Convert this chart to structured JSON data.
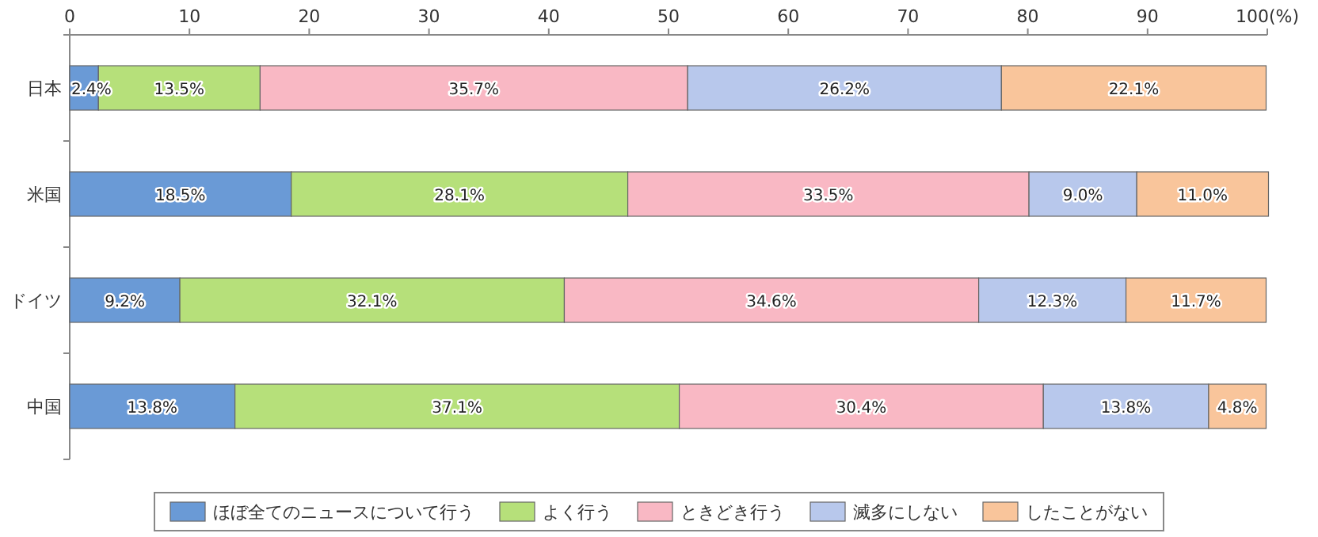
{
  "chart_data": {
    "type": "bar",
    "orientation": "horizontal",
    "stacked": true,
    "categories": [
      "日本",
      "米国",
      "ドイツ",
      "中国"
    ],
    "xlim": [
      0,
      100
    ],
    "xticks": [
      0,
      10,
      20,
      30,
      40,
      50,
      60,
      70,
      80,
      90,
      {
        "value": 100,
        "label": "100(%)"
      }
    ],
    "legend": "bottom",
    "series": [
      {
        "name": "ほぼ全てのニュースについて行う",
        "color": "#6a9ad6",
        "values": [
          2.4,
          18.5,
          9.2,
          13.8
        ],
        "value_labels": [
          "2.4%",
          "18.5%",
          "9.2%",
          "13.8%"
        ]
      },
      {
        "name": "よく行う",
        "color": "#b6e07a",
        "values": [
          13.5,
          28.1,
          32.1,
          37.1
        ],
        "value_labels": [
          "13.5%",
          "28.1%",
          "32.1%",
          "37.1%"
        ]
      },
      {
        "name": "ときどき行う",
        "color": "#f9b8c4",
        "values": [
          35.7,
          33.5,
          34.6,
          30.4
        ],
        "value_labels": [
          "35.7%",
          "33.5%",
          "34.6%",
          "30.4%"
        ]
      },
      {
        "name": "滅多にしない",
        "color": "#b8c8ec",
        "values": [
          26.2,
          9.0,
          12.3,
          13.8
        ],
        "value_labels": [
          "26.2%",
          "9.0%",
          "12.3%",
          "13.8%"
        ]
      },
      {
        "name": "したことがない",
        "color": "#f9c59b",
        "values": [
          22.1,
          11.0,
          11.7,
          4.8
        ],
        "value_labels": [
          "22.1%",
          "11.0%",
          "11.7%",
          "4.8%"
        ]
      }
    ]
  }
}
